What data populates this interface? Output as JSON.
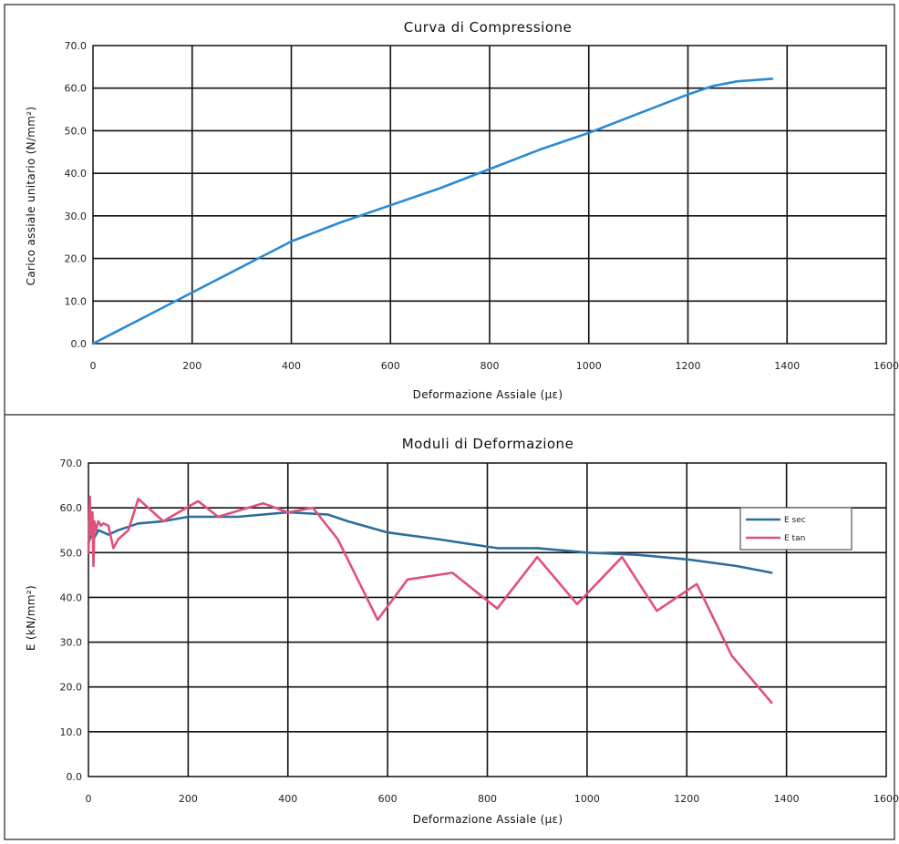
{
  "chart_data": [
    {
      "type": "line",
      "title": "Curva di Compressione",
      "xlabel": "Deformazione Assiale (µε)",
      "ylabel": "Carico assiale unitario (N/mm²)",
      "xlim": [
        0,
        1600
      ],
      "ylim": [
        0,
        70
      ],
      "xticks": [
        "0",
        "200",
        "400",
        "600",
        "800",
        "1000",
        "1200",
        "1400",
        "1600"
      ],
      "yticks": [
        "0.0",
        "10.0",
        "20.0",
        "30.0",
        "40.0",
        "50.0",
        "60.0",
        "70.0"
      ],
      "grid": true,
      "series": [
        {
          "color": "#2a8ad4",
          "x": [
            0,
            100,
            200,
            300,
            400,
            500,
            600,
            700,
            800,
            900,
            1000,
            1100,
            1200,
            1250,
            1300,
            1370
          ],
          "y": [
            0,
            6,
            12,
            18,
            24,
            28.5,
            32.5,
            36.5,
            41,
            45.5,
            49.5,
            54,
            58.5,
            60.5,
            61.6,
            62.2
          ]
        }
      ]
    },
    {
      "type": "line",
      "title": "Moduli di Deformazione",
      "xlabel": "Deformazione Assiale (µε)",
      "ylabel": "E (kN/mm²)",
      "xlim": [
        0,
        1600
      ],
      "ylim": [
        0,
        70
      ],
      "xticks": [
        "0",
        "200",
        "400",
        "600",
        "800",
        "1000",
        "1200",
        "1400",
        "1600"
      ],
      "yticks": [
        "0.0",
        "10.0",
        "20.0",
        "30.0",
        "40.0",
        "50.0",
        "60.0",
        "70.0"
      ],
      "grid": true,
      "legend": "right",
      "series": [
        {
          "name": "E sec",
          "color": "#2a6f9c",
          "x": [
            0,
            5,
            10,
            20,
            40,
            60,
            100,
            150,
            200,
            300,
            400,
            480,
            520,
            600,
            700,
            820,
            900,
            1000,
            1100,
            1200,
            1300,
            1370
          ],
          "y": [
            52,
            54,
            53,
            55,
            54,
            55,
            56.5,
            57,
            58,
            58,
            59,
            58.5,
            57,
            54.5,
            53,
            51,
            51,
            50,
            49.5,
            48.5,
            47,
            45.5
          ]
        },
        {
          "name": "E tan",
          "color": "#e0507a",
          "x": [
            0,
            3,
            5,
            8,
            10,
            12,
            15,
            20,
            25,
            30,
            40,
            50,
            60,
            80,
            100,
            150,
            220,
            260,
            350,
            400,
            450,
            500,
            580,
            640,
            730,
            820,
            900,
            980,
            1070,
            1140,
            1220,
            1290,
            1370
          ],
          "y": [
            50,
            62.5,
            54,
            59,
            47,
            57,
            55,
            57,
            56,
            56.5,
            56,
            51,
            53,
            55,
            62,
            57,
            61.5,
            58,
            61,
            59,
            60,
            53,
            35,
            44,
            45.5,
            37.5,
            49,
            38.5,
            49,
            37,
            43,
            27,
            16.5
          ]
        }
      ]
    }
  ]
}
